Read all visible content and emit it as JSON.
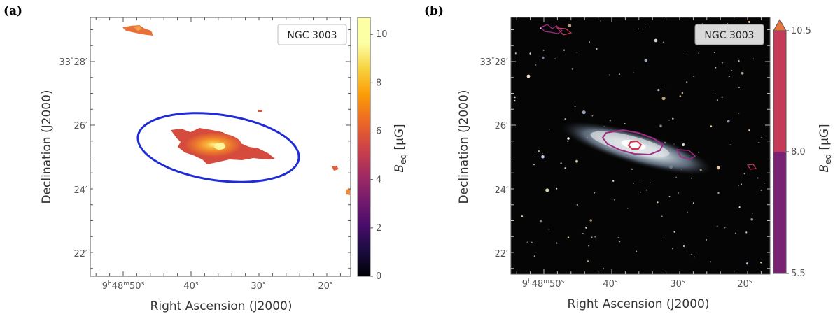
{
  "panels": [
    {
      "letter": "(a)",
      "object_label": "NGC 3003",
      "xlabel": "Right Ascension (J2000)",
      "ylabel": "Declination (J2000)",
      "ra_ticks": [
        {
          "h": "9",
          "m": "48",
          "s": "50",
          "pre": "9",
          "hsup": "h",
          "mid": "48",
          "msup": "m",
          "sec": "50",
          "ssup": "s",
          "full": true
        },
        {
          "sec": "40",
          "ssup": "s",
          "full": false
        },
        {
          "sec": "30",
          "ssup": "s",
          "full": false
        },
        {
          "sec": "20",
          "ssup": "s",
          "full": false
        }
      ],
      "dec_ticks": [
        {
          "deg": "33",
          "min": "28",
          "full": true
        },
        {
          "min": "26",
          "full": false
        },
        {
          "min": "24",
          "full": false
        },
        {
          "min": "22",
          "full": false
        }
      ],
      "colorbar": {
        "label_main": "B",
        "label_sub": "eq",
        "label_unit": "[μG]",
        "ticks": [
          "0",
          "2",
          "4",
          "6",
          "8",
          "10"
        ],
        "range": [
          0,
          10.7
        ]
      }
    },
    {
      "letter": "(b)",
      "object_label": "NGC 3003",
      "xlabel": "Right Ascension (J2000)",
      "ylabel": "Declination (J2000)",
      "ra_ticks": [
        {
          "pre": "9",
          "hsup": "h",
          "mid": "48",
          "msup": "m",
          "sec": "50",
          "ssup": "s",
          "full": true
        },
        {
          "sec": "40",
          "ssup": "s",
          "full": false
        },
        {
          "sec": "30",
          "ssup": "s",
          "full": false
        },
        {
          "sec": "20",
          "ssup": "s",
          "full": false
        }
      ],
      "dec_ticks": [
        {
          "deg": "33",
          "min": "28",
          "full": true
        },
        {
          "min": "26",
          "full": false
        },
        {
          "min": "24",
          "full": false
        },
        {
          "min": "22",
          "full": false
        }
      ],
      "colorbar": {
        "label_main": "B",
        "label_sub": "eq",
        "label_unit": "[μG]",
        "ticks": [
          "5.5",
          "8.0",
          "10.5"
        ],
        "bands": [
          {
            "from": 5.5,
            "to": 8.0,
            "color": "#7a2273"
          },
          {
            "from": 8.0,
            "to": 10.5,
            "color": "#c43a57"
          }
        ],
        "extend_color": "#e8743b"
      }
    }
  ],
  "chart_data": [
    {
      "type": "heatmap",
      "title": "NGC 3003",
      "xlabel": "Right Ascension (J2000)",
      "ylabel": "Declination (J2000)",
      "x_ticks": [
        "9h48m50s",
        "40s",
        "30s",
        "20s"
      ],
      "y_ticks": [
        "33°28′",
        "26′",
        "24′",
        "22′"
      ],
      "colorbar_label": "B_eq [μG]",
      "colorbar_range": [
        0,
        10.7
      ],
      "colorbar_ticks": [
        0,
        2,
        4,
        6,
        8,
        10
      ],
      "overlay": "blue ellipse outlining the galaxy disk",
      "peak_value": 10.5
    },
    {
      "type": "heatmap",
      "title": "NGC 3003",
      "xlabel": "Right Ascension (J2000)",
      "ylabel": "Declination (J2000)",
      "x_ticks": [
        "9h48m50s",
        "40s",
        "30s",
        "20s"
      ],
      "y_ticks": [
        "33°28′",
        "26′",
        "24′",
        "22′"
      ],
      "colorbar_label": "B_eq [μG]",
      "contour_levels": [
        5.5,
        8.0,
        10.5
      ],
      "background": "optical color image"
    }
  ]
}
